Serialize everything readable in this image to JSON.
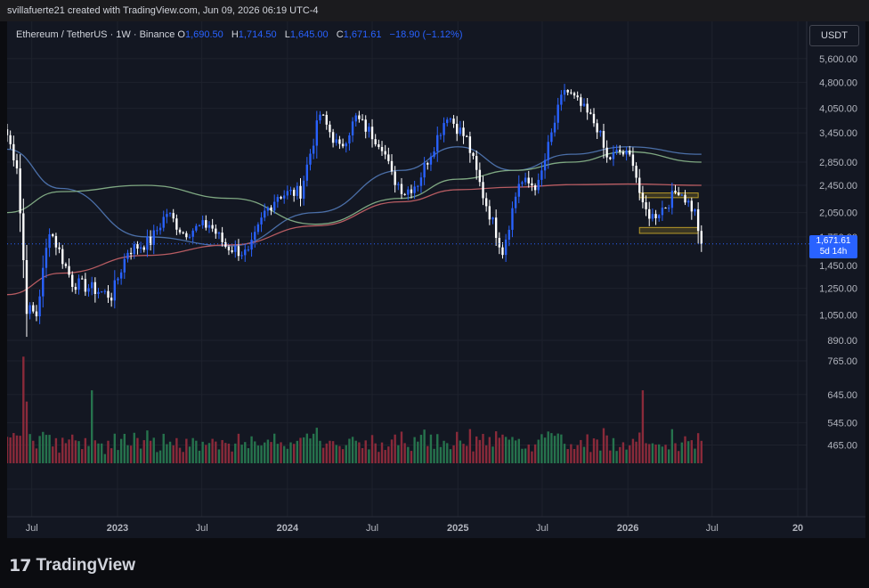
{
  "header": {
    "credit": "svillafuerte21 created with TradingView.com, Jun 09, 2026 06:19 UTC-4"
  },
  "legend": {
    "symbol": "Ethereum / TetherUS · 1W · Binance",
    "open_label": "O",
    "open": "1,690.50",
    "high_label": "H",
    "high": "1,714.50",
    "low_label": "L",
    "low": "1,645.00",
    "close_label": "C",
    "close": "1,671.61",
    "change": "−18.90 (−1.12%)"
  },
  "currency_button": "USDT",
  "last_price": {
    "price": "1,671.61",
    "countdown": "5d 14h"
  },
  "brand": {
    "logo_mark": "17",
    "logo_text": "TradingView"
  },
  "colors": {
    "up": "#2962ff",
    "down": "#ffffff",
    "vol_up": "#26734d",
    "vol_down": "#8a2a3a",
    "ma_short": "#4b6fa8",
    "ma_mid": "#7fa882",
    "ma_long": "#b85c62"
  },
  "chart_data": {
    "type": "candlestick",
    "symbol": "ETH/USDT",
    "timeframe": "1W",
    "y_scale": "log",
    "ylim": [
      880,
      6000
    ],
    "y_ticks": [
      5600,
      4800,
      4050,
      3450,
      2850,
      2450,
      2050,
      1750,
      1450,
      1250,
      1050,
      890
    ],
    "y_tick_labels": [
      "5,600.00",
      "4,800.00",
      "4,050.00",
      "3,450.00",
      "2,850.00",
      "2,450.00",
      "2,050.00",
      "1,750.00",
      "1,450.00",
      "1,250.00",
      "1,050.00",
      "890.00"
    ],
    "vol_ticks": [
      765,
      645,
      545,
      465
    ],
    "vol_tick_labels": [
      "765.00",
      "645.00",
      "545.00",
      "465.00"
    ],
    "x_ticks": [
      "2022-07-01",
      "2023-01-01",
      "2023-07-01",
      "2024-01-01",
      "2024-07-01",
      "2025-01-01",
      "2025-07-01",
      "2026-01-01",
      "2026-07-01",
      "2027-01-01"
    ],
    "x_tick_labels": [
      "Jul",
      "2023",
      "Jul",
      "2024",
      "Jul",
      "2025",
      "Jul",
      "2026",
      "Jul",
      "20"
    ],
    "x_range": [
      "2022-05-09",
      "2027-01-20"
    ],
    "anchors": [
      [
        "2022-05-09",
        3400
      ],
      [
        "2022-05-30",
        2800
      ],
      [
        "2022-06-20",
        1100
      ],
      [
        "2022-07-11",
        1050
      ],
      [
        "2022-08-08",
        1850
      ],
      [
        "2022-09-26",
        1300
      ],
      [
        "2022-11-07",
        1250
      ],
      [
        "2022-12-19",
        1190
      ],
      [
        "2023-01-23",
        1600
      ],
      [
        "2023-03-13",
        1700
      ],
      [
        "2023-04-17",
        2050
      ],
      [
        "2023-05-22",
        1800
      ],
      [
        "2023-07-17",
        1900
      ],
      [
        "2023-08-21",
        1650
      ],
      [
        "2023-10-09",
        1560
      ],
      [
        "2023-11-13",
        2050
      ],
      [
        "2023-12-11",
        2300
      ],
      [
        "2024-01-29",
        2350
      ],
      [
        "2024-03-11",
        3900
      ],
      [
        "2024-04-22",
        3100
      ],
      [
        "2024-05-27",
        3800
      ],
      [
        "2024-07-22",
        3200
      ],
      [
        "2024-08-12",
        2600
      ],
      [
        "2024-09-09",
        2350
      ],
      [
        "2024-10-07",
        2500
      ],
      [
        "2024-11-11",
        3200
      ],
      [
        "2024-12-09",
        3900
      ],
      [
        "2025-01-20",
        3300
      ],
      [
        "2025-02-24",
        2300
      ],
      [
        "2025-04-07",
        1600
      ],
      [
        "2025-05-12",
        2500
      ],
      [
        "2025-06-23",
        2450
      ],
      [
        "2025-07-28",
        3700
      ],
      [
        "2025-08-18",
        4600
      ],
      [
        "2025-09-22",
        4100
      ],
      [
        "2025-10-27",
        3600
      ],
      [
        "2025-11-17",
        2900
      ],
      [
        "2025-12-15",
        3050
      ],
      [
        "2026-01-12",
        2900
      ],
      [
        "2026-02-02",
        2100
      ],
      [
        "2026-02-23",
        2000
      ],
      [
        "2026-03-23",
        2150
      ],
      [
        "2026-04-20",
        2400
      ],
      [
        "2026-05-25",
        2050
      ],
      [
        "2026-06-08",
        1671.61
      ]
    ],
    "moving_averages": [
      {
        "color": "#4b6fa8",
        "points": [
          [
            "2022-05-09",
            3100
          ],
          [
            "2022-09-01",
            2400
          ],
          [
            "2023-03-01",
            1750
          ],
          [
            "2023-09-01",
            1650
          ],
          [
            "2024-03-01",
            2050
          ],
          [
            "2024-09-01",
            2700
          ],
          [
            "2025-01-01",
            3150
          ],
          [
            "2025-05-01",
            2700
          ],
          [
            "2025-09-01",
            3000
          ],
          [
            "2026-01-01",
            3150
          ],
          [
            "2026-06-08",
            3000
          ]
        ]
      },
      {
        "color": "#7fa882",
        "points": [
          [
            "2022-05-09",
            2050
          ],
          [
            "2022-09-01",
            2350
          ],
          [
            "2023-03-01",
            2450
          ],
          [
            "2023-09-01",
            2250
          ],
          [
            "2024-03-01",
            1900
          ],
          [
            "2024-09-01",
            2250
          ],
          [
            "2025-01-01",
            2550
          ],
          [
            "2025-05-01",
            2700
          ],
          [
            "2025-09-01",
            2850
          ],
          [
            "2026-01-01",
            3050
          ],
          [
            "2026-06-08",
            2850
          ]
        ]
      },
      {
        "color": "#b85c62",
        "points": [
          [
            "2022-05-09",
            1200
          ],
          [
            "2022-09-01",
            1380
          ],
          [
            "2023-03-01",
            1550
          ],
          [
            "2023-09-01",
            1660
          ],
          [
            "2024-03-01",
            1880
          ],
          [
            "2024-09-01",
            2200
          ],
          [
            "2025-01-01",
            2380
          ],
          [
            "2025-05-01",
            2420
          ],
          [
            "2025-09-01",
            2460
          ],
          [
            "2026-01-01",
            2470
          ],
          [
            "2026-06-08",
            2450
          ]
        ]
      }
    ],
    "zones": [
      {
        "from": "2026-01-26",
        "to": "2026-06-01",
        "low": 2260,
        "high": 2330
      },
      {
        "from": "2026-01-26",
        "to": "2026-06-01",
        "low": 1790,
        "high": 1860
      }
    ],
    "last_price": 1671.61,
    "volume_peaks": [
      [
        "2022-06-13",
        780
      ],
      [
        "2022-06-20",
        620
      ],
      [
        "2022-11-07",
        660
      ],
      [
        "2026-02-02",
        660
      ],
      [
        "2026-06-08",
        480
      ]
    ]
  }
}
